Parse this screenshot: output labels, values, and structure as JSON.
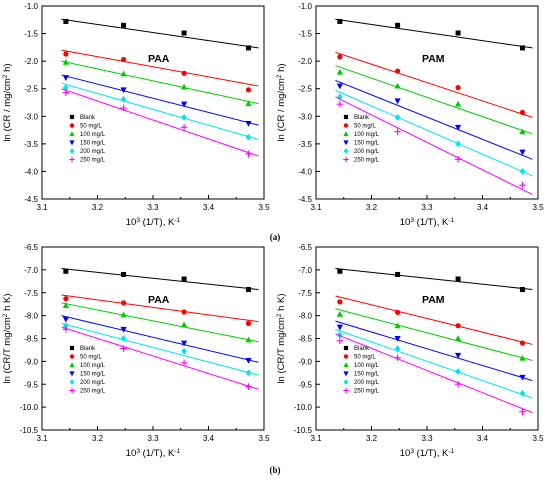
{
  "figure": {
    "sub_labels": [
      "(a)",
      "(b)"
    ]
  },
  "chart_data": [
    {
      "type": "scatter",
      "title": "PAA",
      "xlabel": "10^3 (1/T), K^-1",
      "ylabel": "ln (CR / mg/cm^2 h)",
      "xlim": [
        3.1,
        3.5
      ],
      "ylim": [
        -4.5,
        -1.0
      ],
      "xticks": [
        3.1,
        3.2,
        3.3,
        3.4,
        3.5
      ],
      "yticks": [
        -4.5,
        -4.0,
        -3.5,
        -3.0,
        -2.5,
        -2.0,
        -1.5,
        -1.0
      ],
      "x": [
        3.143,
        3.247,
        3.356,
        3.472
      ],
      "legend_position": "bottom-left",
      "series": [
        {
          "name": "Blank",
          "color": "#000000",
          "marker": "square",
          "values": [
            -1.28,
            -1.35,
            -1.49,
            -1.76
          ],
          "fit": [
            -1.24,
            -1.76
          ]
        },
        {
          "name": "50 mg/L",
          "color": "#ff0000",
          "marker": "circle",
          "values": [
            -1.87,
            -1.97,
            -2.22,
            -2.52
          ],
          "fit": [
            -1.8,
            -2.45
          ]
        },
        {
          "name": "100 mg/L",
          "color": "#00cc00",
          "marker": "triangle-up",
          "values": [
            -2.02,
            -2.23,
            -2.47,
            -2.77
          ],
          "fit": [
            -2.0,
            -2.77
          ]
        },
        {
          "name": "150 mg/L",
          "color": "#0000ff",
          "marker": "triangle-down",
          "values": [
            -2.3,
            -2.52,
            -2.78,
            -3.13
          ],
          "fit": [
            -2.25,
            -3.16
          ]
        },
        {
          "name": "200 mg/L",
          "color": "#00e5ee",
          "marker": "diamond",
          "values": [
            -2.48,
            -2.69,
            -3.02,
            -3.38
          ],
          "fit": [
            -2.4,
            -3.42
          ]
        },
        {
          "name": "250 mg/L",
          "color": "#ff00ff",
          "marker": "plus",
          "values": [
            -2.57,
            -2.85,
            -3.2,
            -3.68
          ],
          "fit": [
            -2.5,
            -3.72
          ]
        }
      ]
    },
    {
      "type": "scatter",
      "title": "PAM",
      "xlabel": "10^3 (1/T), K^-1",
      "ylabel": "ln (CR / mg/cm^2 h)",
      "xlim": [
        3.1,
        3.5
      ],
      "ylim": [
        -4.5,
        -1.0
      ],
      "xticks": [
        3.1,
        3.2,
        3.3,
        3.4,
        3.5
      ],
      "yticks": [
        -4.5,
        -4.0,
        -3.5,
        -3.0,
        -2.5,
        -2.0,
        -1.5,
        -1.0
      ],
      "x": [
        3.143,
        3.247,
        3.356,
        3.472
      ],
      "legend_position": "bottom-left",
      "series": [
        {
          "name": "Blank",
          "color": "#000000",
          "marker": "square",
          "values": [
            -1.28,
            -1.35,
            -1.49,
            -1.76
          ],
          "fit": [
            -1.24,
            -1.76
          ]
        },
        {
          "name": "50 mg/L",
          "color": "#ff0000",
          "marker": "circle",
          "values": [
            -1.92,
            -2.18,
            -2.48,
            -2.93
          ],
          "fit": [
            -1.84,
            -3.02
          ]
        },
        {
          "name": "100 mg/L",
          "color": "#00cc00",
          "marker": "triangle-up",
          "values": [
            -2.2,
            -2.45,
            -2.78,
            -3.28
          ],
          "fit": [
            -2.08,
            -3.32
          ]
        },
        {
          "name": "150 mg/L",
          "color": "#0000ff",
          "marker": "triangle-down",
          "values": [
            -2.45,
            -2.72,
            -3.2,
            -3.65
          ],
          "fit": [
            -2.35,
            -3.78
          ]
        },
        {
          "name": "200 mg/L",
          "color": "#00e5ee",
          "marker": "diamond",
          "values": [
            -2.65,
            -3.02,
            -3.5,
            -4.0
          ],
          "fit": [
            -2.53,
            -4.08
          ]
        },
        {
          "name": "250 mg/L",
          "color": "#ff00ff",
          "marker": "plus",
          "values": [
            -2.78,
            -3.28,
            -3.78,
            -4.25
          ],
          "fit": [
            -2.65,
            -4.42
          ]
        }
      ]
    },
    {
      "type": "scatter",
      "title": "PAA",
      "xlabel": "10^3 (1/T), K^-1",
      "ylabel": "ln (CR/T mg/cm^2 h K)",
      "xlim": [
        3.1,
        3.5
      ],
      "ylim": [
        -10.5,
        -6.5
      ],
      "xticks": [
        3.1,
        3.2,
        3.3,
        3.4,
        3.5
      ],
      "yticks": [
        -10.5,
        -10.0,
        -9.5,
        -9.0,
        -8.5,
        -8.0,
        -7.5,
        -7.0,
        -6.5
      ],
      "x": [
        3.143,
        3.247,
        3.356,
        3.472
      ],
      "legend_position": "bottom-left",
      "series": [
        {
          "name": "Blank",
          "color": "#000000",
          "marker": "square",
          "values": [
            -7.03,
            -7.1,
            -7.2,
            -7.43
          ],
          "fit": [
            -6.97,
            -7.43
          ]
        },
        {
          "name": "50 mg/L",
          "color": "#ff0000",
          "marker": "circle",
          "values": [
            -7.63,
            -7.72,
            -7.92,
            -8.17
          ],
          "fit": [
            -7.55,
            -8.13
          ]
        },
        {
          "name": "100 mg/L",
          "color": "#00cc00",
          "marker": "triangle-up",
          "values": [
            -7.78,
            -7.98,
            -8.2,
            -8.53
          ],
          "fit": [
            -7.72,
            -8.57
          ]
        },
        {
          "name": "150 mg/L",
          "color": "#0000ff",
          "marker": "triangle-down",
          "values": [
            -8.08,
            -8.3,
            -8.6,
            -8.98
          ],
          "fit": [
            -8.0,
            -9.02
          ]
        },
        {
          "name": "200 mg/L",
          "color": "#00e5ee",
          "marker": "diamond",
          "values": [
            -8.22,
            -8.5,
            -8.78,
            -9.25
          ],
          "fit": [
            -8.17,
            -9.3
          ]
        },
        {
          "name": "250 mg/L",
          "color": "#ff00ff",
          "marker": "plus",
          "values": [
            -8.3,
            -8.72,
            -9.03,
            -9.55
          ],
          "fit": [
            -8.25,
            -9.61
          ]
        }
      ]
    },
    {
      "type": "scatter",
      "title": "PAM",
      "xlabel": "10^3 (1/T), K^-1",
      "ylabel": "ln (CR/T mg/cm^2 h K)",
      "xlim": [
        3.1,
        3.5
      ],
      "ylim": [
        -10.5,
        -6.5
      ],
      "xticks": [
        3.1,
        3.2,
        3.3,
        3.4,
        3.5
      ],
      "yticks": [
        -10.5,
        -10.0,
        -9.5,
        -9.0,
        -8.5,
        -8.0,
        -7.5,
        -7.0,
        -6.5
      ],
      "x": [
        3.143,
        3.247,
        3.356,
        3.472
      ],
      "legend_position": "bottom-left",
      "series": [
        {
          "name": "Blank",
          "color": "#000000",
          "marker": "square",
          "values": [
            -7.03,
            -7.1,
            -7.2,
            -7.43
          ],
          "fit": [
            -6.97,
            -7.43
          ]
        },
        {
          "name": "50 mg/L",
          "color": "#ff0000",
          "marker": "circle",
          "values": [
            -7.7,
            -7.93,
            -8.22,
            -8.6
          ],
          "fit": [
            -7.57,
            -8.63
          ]
        },
        {
          "name": "100 mg/L",
          "color": "#00cc00",
          "marker": "triangle-up",
          "values": [
            -7.97,
            -8.22,
            -8.5,
            -8.93
          ],
          "fit": [
            -7.85,
            -8.98
          ]
        },
        {
          "name": "150 mg/L",
          "color": "#0000ff",
          "marker": "triangle-down",
          "values": [
            -8.25,
            -8.5,
            -8.87,
            -9.35
          ],
          "fit": [
            -8.12,
            -9.42
          ]
        },
        {
          "name": "200 mg/L",
          "color": "#00e5ee",
          "marker": "diamond",
          "values": [
            -8.42,
            -8.72,
            -9.22,
            -9.7
          ],
          "fit": [
            -8.3,
            -9.8
          ]
        },
        {
          "name": "250 mg/L",
          "color": "#ff00ff",
          "marker": "plus",
          "values": [
            -8.55,
            -8.92,
            -9.5,
            -10.1
          ],
          "fit": [
            -8.4,
            -10.12
          ]
        }
      ]
    }
  ]
}
